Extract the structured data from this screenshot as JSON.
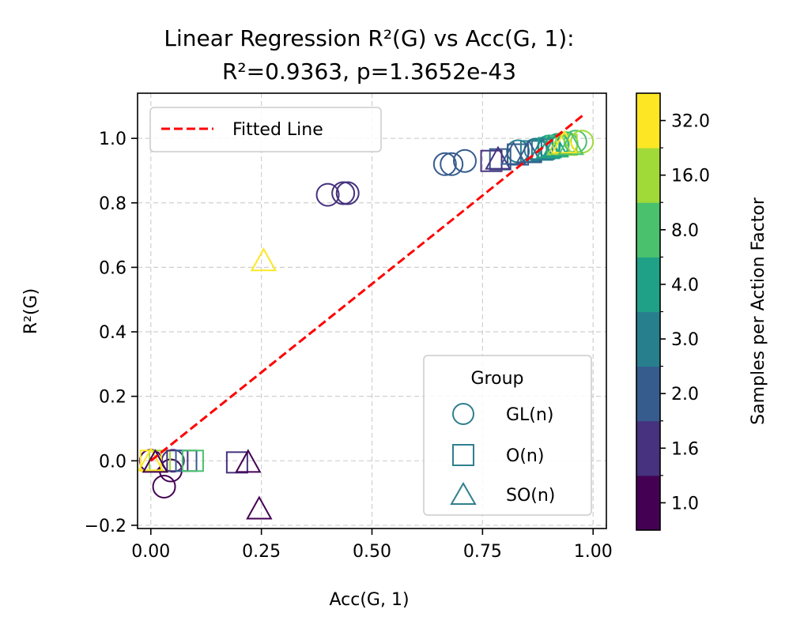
{
  "chart_data": {
    "type": "scatter",
    "title": "Linear Regression R²(G) vs Acc(G, 1):",
    "subtitle": "R²=0.9363, p=1.3652e-43",
    "xlabel": "Acc(G, 1)",
    "ylabel": "R²(G)",
    "xlim": [
      -0.03,
      1.03
    ],
    "ylim": [
      -0.21,
      1.14
    ],
    "xticks": [
      0.0,
      0.25,
      0.5,
      0.75,
      1.0
    ],
    "xtick_labels": [
      "0.00",
      "0.25",
      "0.50",
      "0.75",
      "1.00"
    ],
    "yticks": [
      -0.2,
      0.0,
      0.2,
      0.4,
      0.6,
      0.8,
      1.0
    ],
    "ytick_labels": [
      "−0.2",
      "0.0",
      "0.2",
      "0.4",
      "0.6",
      "0.8",
      "1.0"
    ],
    "grid": true,
    "fit_line": {
      "label": "Fitted Line",
      "color": "#ff0000",
      "style": "dashed",
      "x": [
        0.0,
        0.98
      ],
      "y": [
        0.0,
        1.075
      ]
    },
    "legend_fit": {
      "position": "upper-left",
      "entries": [
        "Fitted Line"
      ]
    },
    "legend_group": {
      "position": "lower-right",
      "title": "Group",
      "entries": [
        {
          "label": "GL(n)",
          "marker": "circle"
        },
        {
          "label": "O(n)",
          "marker": "square"
        },
        {
          "label": "SO(n)",
          "marker": "triangle"
        }
      ],
      "color": "#2f7f8e"
    },
    "colorbar": {
      "label": "Samples per Action Factor",
      "levels": [
        "1.0",
        "1.6",
        "2.0",
        "3.0",
        "4.0",
        "8.0",
        "16.0",
        "32.0"
      ],
      "colors": [
        "#440154",
        "#46327e",
        "#365c8d",
        "#277f8e",
        "#1fa187",
        "#4ac16d",
        "#a0da39",
        "#fde725"
      ]
    },
    "series": [
      {
        "group": "GL(n)",
        "marker": "circle",
        "points": [
          {
            "x": 0.03,
            "y": -0.08,
            "c": 0
          },
          {
            "x": 0.045,
            "y": -0.03,
            "c": 0
          },
          {
            "x": 0.0,
            "y": 0.0,
            "c": 0
          },
          {
            "x": 0.05,
            "y": 0.0,
            "c": 1
          },
          {
            "x": 0.4,
            "y": 0.825,
            "c": 1
          },
          {
            "x": 0.435,
            "y": 0.83,
            "c": 1
          },
          {
            "x": 0.445,
            "y": 0.83,
            "c": 1
          },
          {
            "x": 0.665,
            "y": 0.92,
            "c": 2
          },
          {
            "x": 0.68,
            "y": 0.92,
            "c": 2
          },
          {
            "x": 0.71,
            "y": 0.93,
            "c": 2
          },
          {
            "x": 0.83,
            "y": 0.96,
            "c": 3
          },
          {
            "x": 0.87,
            "y": 0.965,
            "c": 3
          },
          {
            "x": 0.9,
            "y": 0.975,
            "c": 4
          },
          {
            "x": 0.92,
            "y": 0.98,
            "c": 4
          },
          {
            "x": 0.94,
            "y": 0.985,
            "c": 5
          },
          {
            "x": 0.96,
            "y": 0.99,
            "c": 5
          },
          {
            "x": 0.975,
            "y": 0.99,
            "c": 6
          }
        ]
      },
      {
        "group": "O(n)",
        "marker": "square",
        "points": [
          {
            "x": 0.0,
            "y": 0.0,
            "c": 7
          },
          {
            "x": 0.02,
            "y": 0.0,
            "c": 6
          },
          {
            "x": 0.06,
            "y": 0.0,
            "c": 1
          },
          {
            "x": 0.08,
            "y": 0.0,
            "c": 2
          },
          {
            "x": 0.095,
            "y": 0.0,
            "c": 5
          },
          {
            "x": 0.195,
            "y": -0.005,
            "c": 1
          },
          {
            "x": 0.77,
            "y": 0.93,
            "c": 1
          },
          {
            "x": 0.79,
            "y": 0.935,
            "c": 2
          },
          {
            "x": 0.83,
            "y": 0.95,
            "c": 2
          },
          {
            "x": 0.86,
            "y": 0.96,
            "c": 3
          },
          {
            "x": 0.885,
            "y": 0.965,
            "c": 3
          },
          {
            "x": 0.9,
            "y": 0.97,
            "c": 4
          },
          {
            "x": 0.92,
            "y": 0.975,
            "c": 5
          },
          {
            "x": 0.94,
            "y": 0.98,
            "c": 6
          }
        ]
      },
      {
        "group": "SO(n)",
        "marker": "triangle",
        "points": [
          {
            "x": 0.0,
            "y": 0.0,
            "c": 7
          },
          {
            "x": 0.01,
            "y": -0.005,
            "c": 0
          },
          {
            "x": 0.22,
            "y": -0.005,
            "c": 0
          },
          {
            "x": 0.245,
            "y": -0.15,
            "c": 0
          },
          {
            "x": 0.255,
            "y": 0.62,
            "c": 7
          },
          {
            "x": 0.785,
            "y": 0.935,
            "c": 1
          },
          {
            "x": 0.82,
            "y": 0.95,
            "c": 2
          },
          {
            "x": 0.855,
            "y": 0.955,
            "c": 2
          },
          {
            "x": 0.885,
            "y": 0.965,
            "c": 3
          },
          {
            "x": 0.9,
            "y": 0.97,
            "c": 4
          },
          {
            "x": 0.915,
            "y": 0.975,
            "c": 4
          },
          {
            "x": 0.925,
            "y": 0.98,
            "c": 6
          },
          {
            "x": 0.935,
            "y": 0.985,
            "c": 7
          },
          {
            "x": 0.95,
            "y": 0.98,
            "c": 5
          }
        ]
      }
    ]
  }
}
